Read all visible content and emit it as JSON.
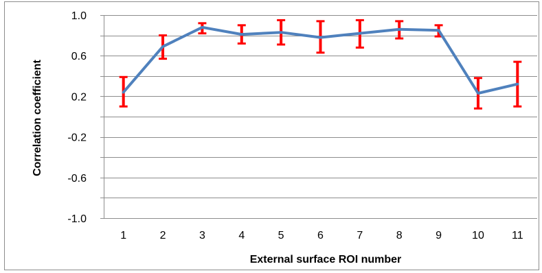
{
  "chart_data": {
    "type": "line",
    "title": "",
    "xlabel": "External surface  ROI number",
    "ylabel": "Correlation coefficient",
    "categories": [
      "1",
      "2",
      "3",
      "4",
      "5",
      "6",
      "7",
      "8",
      "9",
      "10",
      "11"
    ],
    "series": [
      {
        "values": [
          0.24,
          0.69,
          0.88,
          0.81,
          0.83,
          0.78,
          0.82,
          0.86,
          0.85,
          0.23,
          0.32
        ],
        "error_low": [
          0.1,
          0.57,
          0.82,
          0.72,
          0.71,
          0.63,
          0.68,
          0.77,
          0.79,
          0.08,
          0.1
        ],
        "error_high": [
          0.39,
          0.8,
          0.92,
          0.9,
          0.95,
          0.94,
          0.95,
          0.94,
          0.9,
          0.38,
          0.54
        ],
        "line_color": "#4F81BD",
        "error_color": "#FF0000"
      }
    ],
    "ylim": [
      -1.0,
      1.0
    ],
    "yticks": [
      "1.0",
      "0.6",
      "0.2",
      "-0.2",
      "-0.6",
      "-1.0"
    ],
    "ytick_values": [
      1.0,
      0.6,
      0.2,
      -0.2,
      -0.6,
      -1.0
    ],
    "grid_step": 0.2,
    "grid": true,
    "legend": "none"
  }
}
